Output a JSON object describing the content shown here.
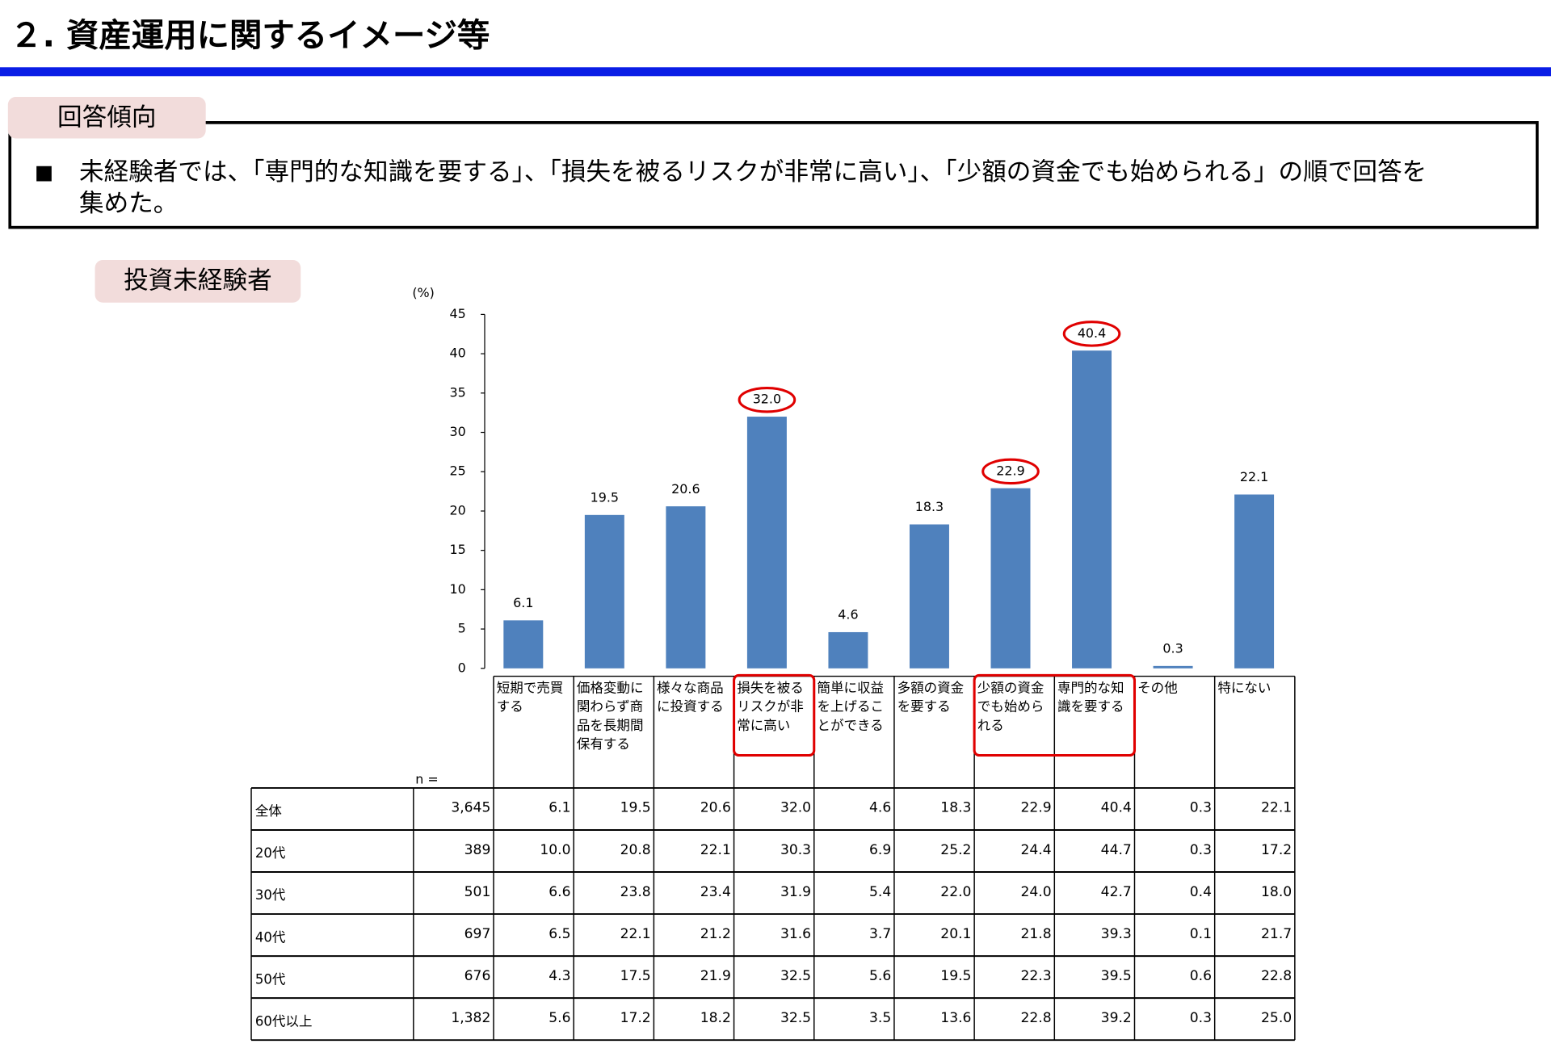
{
  "header": {
    "title": "２. 資産運用に関するイメージ等"
  },
  "summary": {
    "label": "回答傾向",
    "bullet": "■",
    "text_lines": [
      "未経験者では、「専門的な知識を要する」、「損失を被るリスクが非常に高い」、「少額の資金でも始められる」の順で回答を",
      "集めた。"
    ]
  },
  "section_label": "投資未経験者",
  "chart_data": {
    "type": "bar",
    "y_unit": "(%)",
    "categories": [
      "短期で売買する",
      "価格変動に関わらず商品を長期間保有する",
      "様々な商品に投資する",
      "損失を被るリスクが非常に高い",
      "簡単に収益を上げることができる",
      "多額の資金を要する",
      "少額の資金でも始められる",
      "専門的な知識を要する",
      "その他",
      "特にない"
    ],
    "values": [
      6.1,
      19.5,
      20.6,
      32.0,
      4.6,
      18.3,
      22.9,
      40.4,
      0.3,
      22.1
    ],
    "value_labels": [
      "6.1",
      "19.5",
      "20.6",
      "32.0",
      "4.6",
      "18.3",
      "22.9",
      "40.4",
      "0.3",
      "22.1"
    ],
    "color": "#4f81bd",
    "highlight": [
      3,
      6,
      7
    ],
    "highlight_color": "#e00000",
    "ylim": [
      0,
      45
    ],
    "yticks": [
      0,
      5,
      10,
      15,
      20,
      25,
      30,
      35,
      40,
      45
    ]
  },
  "table": {
    "n_label": "n =",
    "rows": [
      [
        "全体",
        "3,645",
        "6.1",
        "19.5",
        "20.6",
        "32.0",
        "4.6",
        "18.3",
        "22.9",
        "40.4",
        "0.3",
        "22.1"
      ],
      [
        "20代",
        "389",
        "10.0",
        "20.8",
        "22.1",
        "30.3",
        "6.9",
        "25.2",
        "24.4",
        "44.7",
        "0.3",
        "17.2"
      ],
      [
        "30代",
        "501",
        "6.6",
        "23.8",
        "23.4",
        "31.9",
        "5.4",
        "22.0",
        "24.0",
        "42.7",
        "0.4",
        "18.0"
      ],
      [
        "40代",
        "697",
        "6.5",
        "22.1",
        "21.2",
        "31.6",
        "3.7",
        "20.1",
        "21.8",
        "39.3",
        "0.1",
        "21.7"
      ],
      [
        "50代",
        "676",
        "4.3",
        "17.5",
        "21.9",
        "32.5",
        "5.6",
        "19.5",
        "22.3",
        "39.5",
        "0.6",
        "22.8"
      ],
      [
        "60代以上",
        "1,382",
        "5.6",
        "17.2",
        "18.2",
        "32.5",
        "3.5",
        "13.6",
        "22.8",
        "39.2",
        "0.3",
        "25.0"
      ]
    ]
  }
}
